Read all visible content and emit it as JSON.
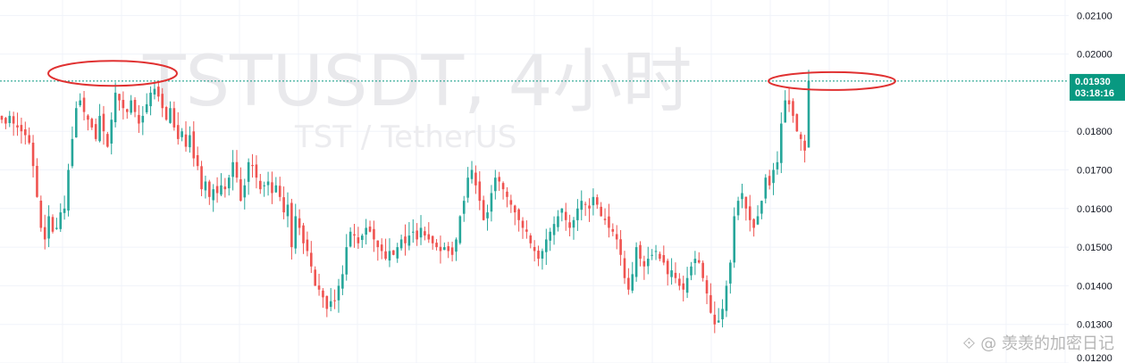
{
  "chart_data": {
    "type": "candlestick",
    "symbol_watermark": "TSTUSDT, 4小时",
    "pair_watermark": "TST / TetherUS",
    "y_axis": {
      "ticks": [
        "0.02100",
        "0.02000",
        "0.01800",
        "0.01700",
        "0.01600",
        "0.01500",
        "0.01400",
        "0.01300",
        "0.01200"
      ],
      "ylim": [
        0.012,
        0.0214
      ]
    },
    "current_price": {
      "price": "0.01930",
      "countdown": "03:18:16",
      "value": 0.0193
    },
    "colors": {
      "up": "#26a69a",
      "down": "#ef5350",
      "annotation": "#e03131",
      "price_line": "#089981",
      "grid": "#f0f3fa"
    },
    "close_series": [
      0.0183,
      0.0182,
      0.0184,
      0.0182,
      0.0181,
      0.018,
      0.0179,
      0.0177,
      0.0171,
      0.0163,
      0.0155,
      0.0152,
      0.0158,
      0.0154,
      0.0155,
      0.0159,
      0.016,
      0.017,
      0.0178,
      0.0186,
      0.0188,
      0.0185,
      0.0183,
      0.0181,
      0.0178,
      0.0184,
      0.018,
      0.0176,
      0.0183,
      0.019,
      0.0188,
      0.0186,
      0.0185,
      0.0188,
      0.0185,
      0.0182,
      0.0184,
      0.0187,
      0.019,
      0.0191,
      0.0189,
      0.0186,
      0.0183,
      0.0186,
      0.0181,
      0.0178,
      0.018,
      0.0176,
      0.0179,
      0.0173,
      0.0171,
      0.0165,
      0.0167,
      0.0163,
      0.0165,
      0.0164,
      0.0166,
      0.0165,
      0.0168,
      0.0172,
      0.0168,
      0.0162,
      0.0166,
      0.0172,
      0.0171,
      0.0168,
      0.0165,
      0.0166,
      0.0167,
      0.0164,
      0.0166,
      0.0163,
      0.0159,
      0.0161,
      0.015,
      0.0158,
      0.0155,
      0.0151,
      0.0149,
      0.0145,
      0.014,
      0.0139,
      0.0137,
      0.0134,
      0.0136,
      0.0136,
      0.014,
      0.0143,
      0.015,
      0.0154,
      0.0153,
      0.0151,
      0.0153,
      0.0155,
      0.0154,
      0.0152,
      0.015,
      0.0149,
      0.0147,
      0.0149,
      0.0148,
      0.015,
      0.0152,
      0.0151,
      0.0153,
      0.0154,
      0.0152,
      0.0155,
      0.0153,
      0.0152,
      0.0151,
      0.015,
      0.0149,
      0.015,
      0.0149,
      0.0148,
      0.0152,
      0.0158,
      0.0162,
      0.0168,
      0.017,
      0.0166,
      0.0162,
      0.0157,
      0.0159,
      0.0164,
      0.0168,
      0.0167,
      0.0165,
      0.0163,
      0.0161,
      0.0159,
      0.0157,
      0.0155,
      0.0154,
      0.0151,
      0.0149,
      0.0147,
      0.0149,
      0.0152,
      0.0154,
      0.0156,
      0.0158,
      0.016,
      0.0157,
      0.0155,
      0.0157,
      0.016,
      0.0162,
      0.0161,
      0.016,
      0.0163,
      0.0161,
      0.0158,
      0.0157,
      0.0155,
      0.0154,
      0.0152,
      0.0148,
      0.0142,
      0.0139,
      0.0143,
      0.015,
      0.0147,
      0.0145,
      0.0147,
      0.0148,
      0.0149,
      0.0147,
      0.0146,
      0.0143,
      0.0144,
      0.0142,
      0.014,
      0.0139,
      0.0142,
      0.0145,
      0.0147,
      0.0146,
      0.0142,
      0.0138,
      0.0133,
      0.013,
      0.0131,
      0.0134,
      0.014,
      0.0146,
      0.0158,
      0.0162,
      0.0164,
      0.016,
      0.0157,
      0.0155,
      0.0158,
      0.0162,
      0.0168,
      0.0166,
      0.017,
      0.0172,
      0.0182,
      0.0188,
      0.0187,
      0.0184,
      0.018,
      0.0178,
      0.0175,
      0.0193
    ],
    "annotations": [
      {
        "type": "ellipse",
        "note": "marked double-top area",
        "price": 0.0195
      },
      {
        "type": "ellipse",
        "note": "marked latest spike",
        "price": 0.0193
      }
    ]
  },
  "footer": {
    "watermark": "⟐ @ 羡羡的加密日记"
  }
}
